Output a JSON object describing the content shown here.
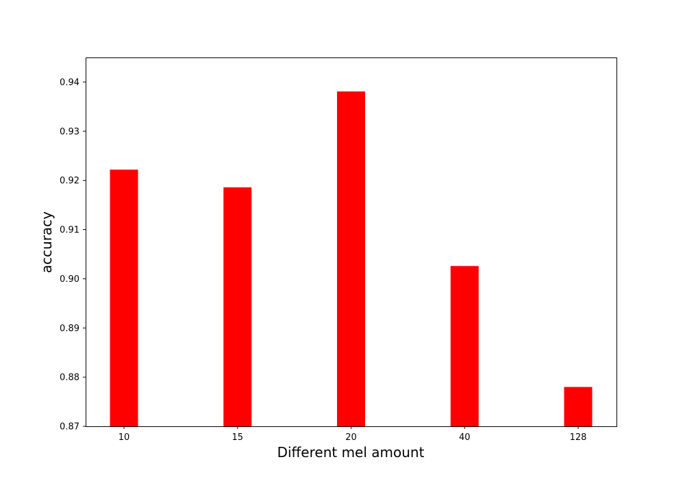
{
  "chart_data": {
    "type": "bar",
    "title": "",
    "xlabel": "Different mel amount",
    "ylabel": "accuracy",
    "categories": [
      "10",
      "15",
      "20",
      "40",
      "128"
    ],
    "values": [
      0.9222,
      0.9186,
      0.9381,
      0.9026,
      0.878
    ],
    "ylim": [
      0.87,
      0.945
    ],
    "yticks": [
      0.87,
      0.88,
      0.89,
      0.9,
      0.91,
      0.92,
      0.93,
      0.94
    ],
    "ytick_labels": [
      "0.87",
      "0.88",
      "0.89",
      "0.90",
      "0.91",
      "0.92",
      "0.93",
      "0.94"
    ],
    "bar_color": "#ff0000",
    "grid": false,
    "legend": "none"
  }
}
